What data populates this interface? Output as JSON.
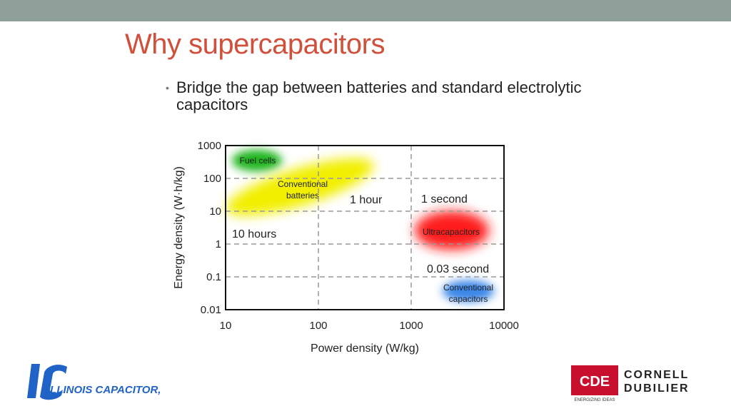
{
  "header": {
    "bar_color": "#8fa09a"
  },
  "slide": {
    "title": "Why supercapacitors",
    "title_color": "#d0503c",
    "bullet": "Bridge the gap between batteries and standard electrolytic capacitors"
  },
  "chart_data": {
    "type": "diagram",
    "xlabel": "Power density (W/kg)",
    "ylabel": "Energy density (W·h/kg)",
    "x_scale": "log",
    "y_scale": "log",
    "xlim": [
      10,
      10000
    ],
    "ylim": [
      0.01,
      1000
    ],
    "x_ticks": [
      "10",
      "100",
      "1000",
      "10000"
    ],
    "y_ticks": [
      "1000",
      "100",
      "10",
      "1",
      "0.1",
      "0.01"
    ],
    "grid": true,
    "regions": [
      {
        "label": "Fuel cells",
        "color": "#1fb51f",
        "center_x": 20,
        "center_y": 400
      },
      {
        "label": "Conventional batteries",
        "color": "#f2ef00",
        "center_x": 100,
        "center_y": 40
      },
      {
        "label": "Ultracapacitors",
        "color": "#ff1a1a",
        "center_x": 3000,
        "center_y": 4
      },
      {
        "label": "Conventional capacitors",
        "color": "#3a86e8",
        "center_x": 4500,
        "center_y": 0.05
      }
    ],
    "time_annotations": [
      "10 hours",
      "1 hour",
      "1 second",
      "0.03 second"
    ]
  },
  "logos": {
    "left_text": "ILLINOIS CAPACITOR, INC.",
    "left_mark": "IC",
    "left_color": "#1f63c6",
    "right_mark": "CDE",
    "right_line1": "CORNELL",
    "right_line2": "DUBILIER",
    "right_tagline": "ENERGIZING IDEAS",
    "right_color": "#c8102e"
  }
}
